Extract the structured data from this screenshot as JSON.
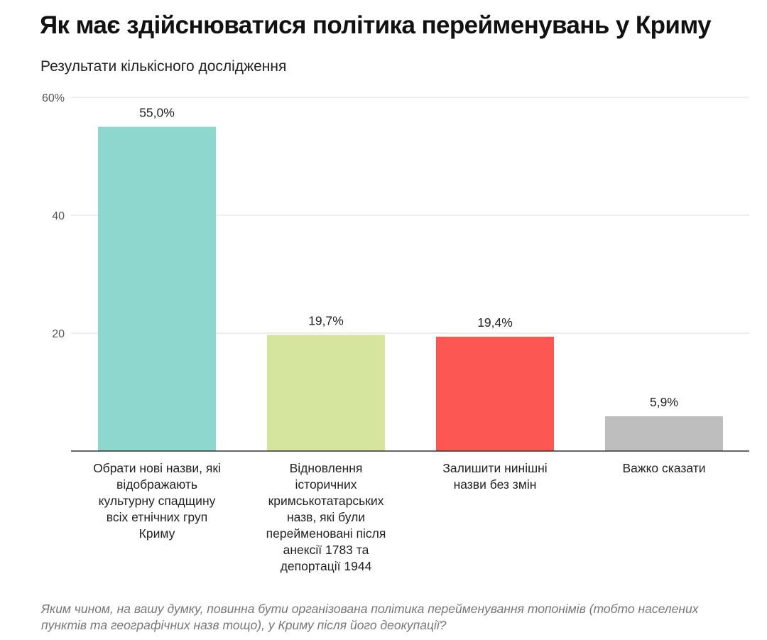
{
  "chart_data": {
    "type": "bar",
    "title": "Як має здійснюватися політика перейменувань у Криму",
    "subtitle": "Результати кількісного дослідження",
    "categories": [
      [
        "Обрати нові назви, які",
        "відображають",
        "культурну спадщину",
        "всіх етнічних груп",
        "Криму"
      ],
      [
        "Відновлення",
        "історичних",
        "кримськотатарських",
        "назв, які були",
        "перейменовані після",
        "анексії 1783 та",
        "депортації 1944"
      ],
      [
        "Залишити нинішні",
        "назви без змін"
      ],
      [
        "Важко сказати"
      ]
    ],
    "values": [
      55.0,
      19.7,
      19.4,
      5.9
    ],
    "value_labels": [
      "55,0%",
      "19,7%",
      "19,4%",
      "5,9%"
    ],
    "colors": [
      "#8ed7cf",
      "#d6e59d",
      "#fc5752",
      "#bebebe"
    ],
    "ylim": [
      0,
      60
    ],
    "yticks": [
      20,
      40,
      60
    ],
    "ytick_labels": [
      "20",
      "40",
      "60%"
    ],
    "grid": true,
    "xlabel": "",
    "ylabel": "",
    "footnote": "Яким чином, на вашу думку, повинна бути організована політика перейменування топонімів (тобто населених пунктів та географічних назв тощо), у Криму після його деокупації?"
  }
}
